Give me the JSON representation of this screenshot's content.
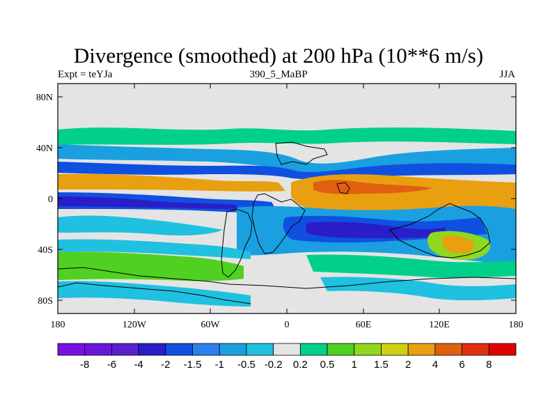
{
  "title": "Divergence (smoothed) at 200 hPa (10**6 m/s)",
  "left_label": "Expt = teYJa",
  "center_label": "390_5_MaBP",
  "right_label": "JJA",
  "lat_ticks": [
    "80N",
    "40N",
    "0",
    "40S",
    "80S"
  ],
  "lon_ticks": [
    "180",
    "120W",
    "60W",
    "0",
    "60E",
    "120E",
    "180"
  ],
  "colorbar": {
    "colors": [
      "#7a10e0",
      "#6a18d8",
      "#5a20d0",
      "#2a1ec8",
      "#1050e0",
      "#2a80ea",
      "#1aa0e0",
      "#20c0e0",
      "#e4e4e4",
      "#00d08a",
      "#50d020",
      "#90d820",
      "#d0d010",
      "#e8a010",
      "#e06010",
      "#e03010",
      "#e00000"
    ],
    "labels": [
      "-8",
      "-6",
      "-4",
      "-2",
      "-1.5",
      "-1",
      "-0.5",
      "-0.2",
      "0.2",
      "0.5",
      "1",
      "1.5",
      "2",
      "4",
      "6",
      "8"
    ]
  },
  "palette": {
    "neutral": "#e4e4e4",
    "div_weak": "#00d08a",
    "div_mid": "#50d020",
    "div_strong": "#90d820",
    "div_high": "#e8a010",
    "div_peak": "#e06010",
    "conv_weak": "#20c0e0",
    "conv_mid": "#1aa0e0",
    "conv_strong": "#1050e0",
    "conv_peak": "#2a1ec8"
  }
}
